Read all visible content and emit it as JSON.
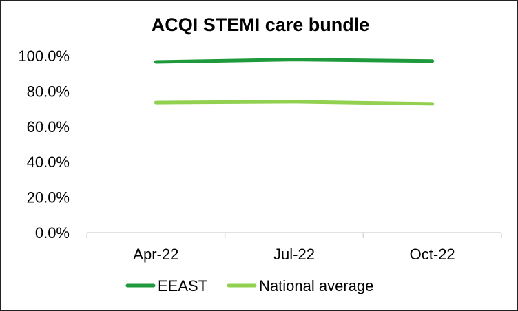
{
  "chart_data": {
    "type": "line",
    "title": "ACQI STEMI care bundle",
    "categories": [
      "Apr-22",
      "Jul-22",
      "Oct-22"
    ],
    "y_tick_labels": [
      "0.0%",
      "20.0%",
      "40.0%",
      "60.0%",
      "80.0%",
      "100.0%"
    ],
    "ylim": [
      0,
      100
    ],
    "y_unit": "%",
    "grid": false,
    "legend_position": "bottom",
    "series": [
      {
        "name": "EEAST",
        "values": [
          96.5,
          97.8,
          97.0
        ],
        "color": "#1e9a3c"
      },
      {
        "name": "National average",
        "values": [
          73.5,
          74.0,
          72.8
        ],
        "color": "#92d050"
      }
    ]
  }
}
